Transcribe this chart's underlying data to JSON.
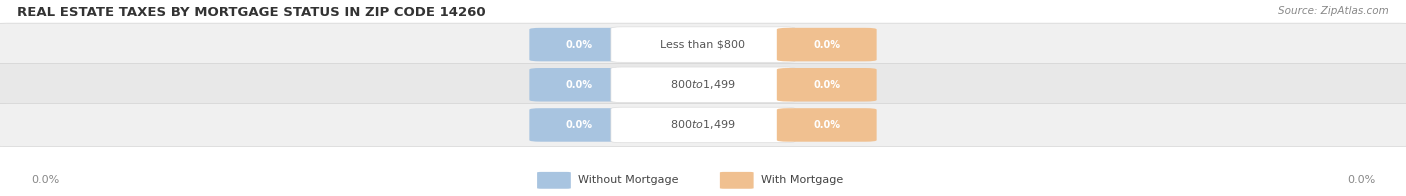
{
  "title": "REAL ESTATE TAXES BY MORTGAGE STATUS IN ZIP CODE 14260",
  "source": "Source: ZipAtlas.com",
  "categories": [
    "Less than $800",
    "$800 to $1,499",
    "$800 to $1,499"
  ],
  "without_mortgage_color": "#a8c4e0",
  "with_mortgage_color": "#f0c090",
  "row_bg_colors": [
    "#f0f0f0",
    "#e8e8e8",
    "#f0f0f0"
  ],
  "title_fontsize": 9.5,
  "source_fontsize": 7.5,
  "legend_label_without": "Without Mortgage",
  "legend_label_with": "With Mortgage",
  "x_left_label": "0.0%",
  "x_right_label": "0.0%",
  "figure_width": 14.06,
  "figure_height": 1.96,
  "background_color": "#ffffff",
  "value_label": "0.0%",
  "row_edge_color": "#cccccc",
  "label_box_color": "#ffffff",
  "label_text_color": "#555555",
  "value_text_color": "#ffffff",
  "bottom_label_color": "#888888"
}
